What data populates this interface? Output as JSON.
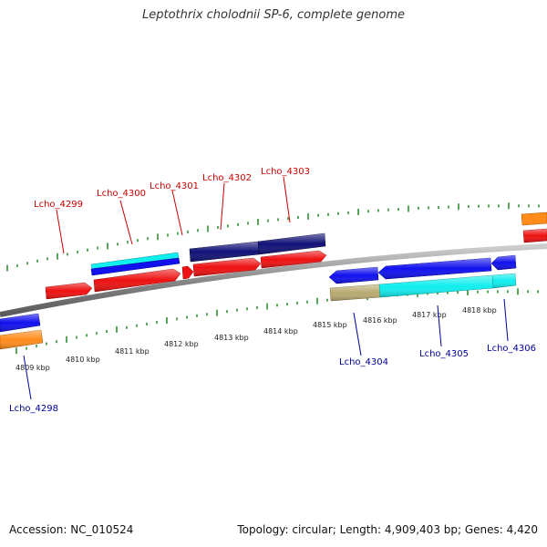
{
  "title": "Leptothrix cholodnii SP-6, complete genome",
  "footer": {
    "accession": "Accession: NC_010524",
    "summary": "Topology: circular; Length: 4,909,403 bp; Genes: 4,420"
  },
  "colors": {
    "forward_label": "#cc0000",
    "reverse_label": "#000099",
    "tick": "#228822",
    "backbone": "#888888",
    "cds_red": "#ee1111",
    "cds_cyan": "#11eeee",
    "cds_blue": "#1111ee",
    "cds_navy": "#111177",
    "cds_tan": "#b8aa70",
    "cds_orange": "#ff8c1a"
  },
  "scale": {
    "unit": "kbp",
    "labels": [
      "4809 kbp",
      "4810 kbp",
      "4811 kbp",
      "4812 kbp",
      "4813 kbp",
      "4814 kbp",
      "4815 kbp",
      "4816 kbp",
      "4817 kbp",
      "4818 kbp"
    ]
  },
  "gene_labels": {
    "forward": [
      "Lcho_4299",
      "Lcho_4300",
      "Lcho_4301",
      "Lcho_4302",
      "Lcho_4303"
    ],
    "reverse": [
      "Lcho_4298",
      "Lcho_4304",
      "Lcho_4305",
      "Lcho_4306"
    ]
  }
}
